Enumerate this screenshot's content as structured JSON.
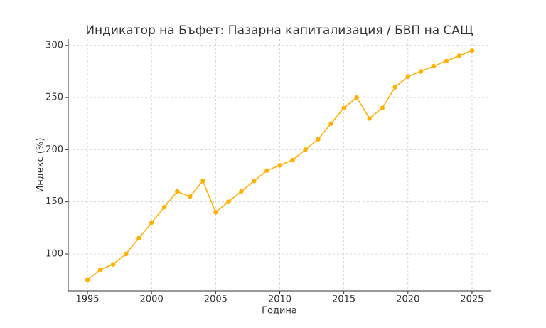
{
  "chart_data": {
    "type": "line",
    "title": "Индикатор на Бъфет: Пазарна капитализация / БВП на САЩ",
    "x_label": "Година",
    "y_label": "Индекс (%)",
    "x": [
      1995,
      1996,
      1997,
      1998,
      1999,
      2000,
      2001,
      2002,
      2003,
      2004,
      2005,
      2006,
      2007,
      2008,
      2009,
      2010,
      2011,
      2012,
      2013,
      2014,
      2015,
      2016,
      2017,
      2018,
      2019,
      2020,
      2021,
      2022,
      2023,
      2024,
      2025
    ],
    "series": [
      {
        "name": "Индекс",
        "color": "#ffb000",
        "values": [
          75,
          85,
          90,
          100,
          115,
          130,
          145,
          160,
          155,
          170,
          140,
          150,
          160,
          170,
          180,
          185,
          190,
          200,
          210,
          225,
          240,
          250,
          230,
          240,
          260,
          270,
          275,
          280,
          285,
          290,
          295
        ]
      }
    ],
    "xlim": [
      1993.5,
      2026.5
    ],
    "xticks": [
      1995,
      2000,
      2005,
      2010,
      2015,
      2020,
      2025
    ],
    "ylim": [
      64.5,
      306
    ],
    "yticks": [
      100,
      150,
      200,
      250,
      300
    ],
    "grid": true
  }
}
